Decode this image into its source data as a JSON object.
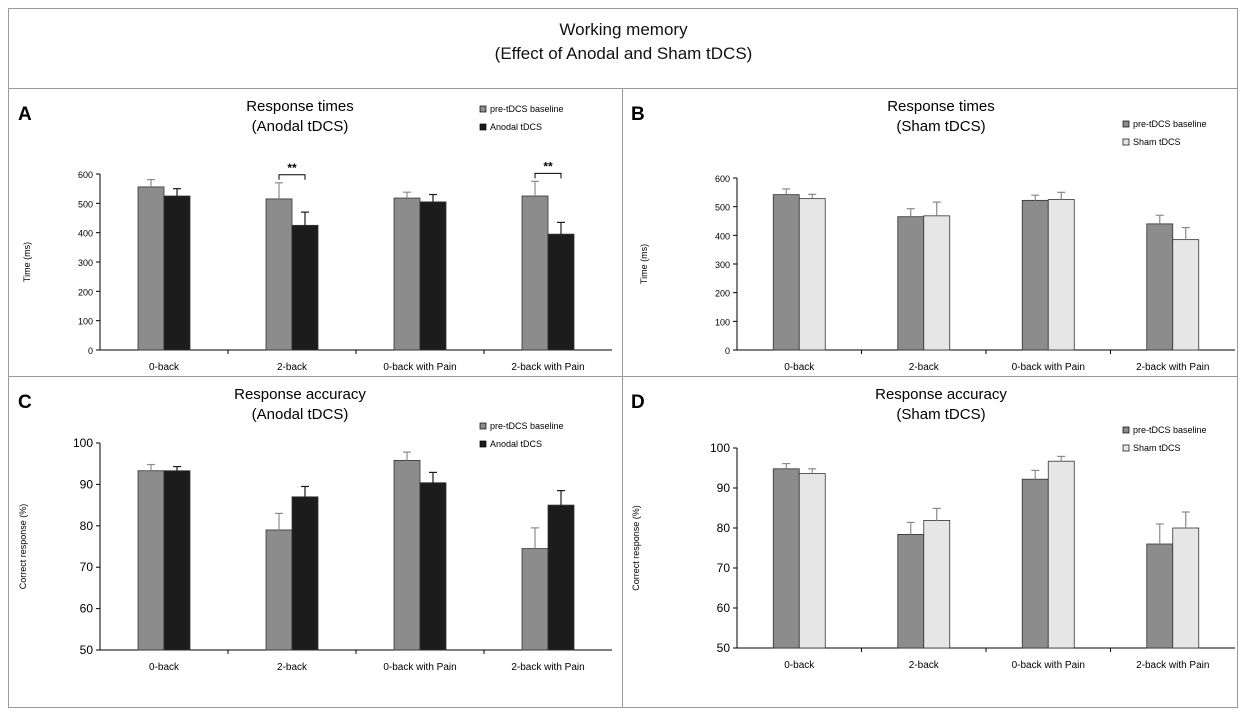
{
  "figure": {
    "title_line1": "Working memory",
    "title_line2": "(Effect of Anodal and Sham tDCS)"
  },
  "colors": {
    "baseline": "#8c8c8c",
    "anodal": "#1c1c1c",
    "sham": "#e6e6e6",
    "axis": "#000000"
  },
  "chart_data": [
    {
      "panel": "A",
      "type": "bar",
      "title": "Response times",
      "subtitle": "(Anodal tDCS)",
      "xlabel": "",
      "ylabel": "Time (ms)",
      "ylim": [
        0,
        600
      ],
      "yticks": [
        0,
        100,
        200,
        300,
        400,
        500,
        600
      ],
      "categories": [
        "0-back",
        "2-back",
        "0-back with Pain",
        "2-back with Pain"
      ],
      "series": [
        {
          "name": "pre-tDCS baseline",
          "color": "#8c8c8c",
          "values": [
            556,
            515,
            518,
            525
          ],
          "errors": [
            25,
            55,
            20,
            50
          ]
        },
        {
          "name": "Anodal tDCS",
          "color": "#1c1c1c",
          "values": [
            525,
            425,
            505,
            395
          ],
          "errors": [
            25,
            45,
            25,
            40
          ]
        }
      ],
      "significance": [
        {
          "category": "2-back",
          "label": "**"
        },
        {
          "category": "2-back with Pain",
          "label": "**"
        }
      ],
      "legend_position": "top-right",
      "grid": false
    },
    {
      "panel": "B",
      "type": "bar",
      "title": "Response times",
      "subtitle": "(Sham tDCS)",
      "xlabel": "",
      "ylabel": "Time (ms)",
      "ylim": [
        0,
        600
      ],
      "yticks": [
        0,
        100,
        200,
        300,
        400,
        500,
        600
      ],
      "categories": [
        "0-back",
        "2-back",
        "0-back with Pain",
        "2-back with Pain"
      ],
      "series": [
        {
          "name": "pre-tDCS baseline",
          "color": "#8c8c8c",
          "values": [
            542,
            465,
            522,
            440
          ],
          "errors": [
            20,
            28,
            18,
            30
          ]
        },
        {
          "name": "Sham tDCS",
          "color": "#e6e6e6",
          "values": [
            528,
            468,
            525,
            385
          ],
          "errors": [
            15,
            48,
            25,
            42
          ]
        }
      ],
      "significance": [],
      "legend_position": "top-right",
      "grid": false
    },
    {
      "panel": "C",
      "type": "bar",
      "title": "Response accuracy",
      "subtitle": "(Anodal tDCS)",
      "xlabel": "",
      "ylabel": "Correct response (%)",
      "ylim": [
        50,
        100
      ],
      "yticks": [
        50,
        60,
        70,
        80,
        90,
        100
      ],
      "categories": [
        "0-back",
        "2-back",
        "0-back with Pain",
        "2-back with Pain"
      ],
      "series": [
        {
          "name": "pre-tDCS baseline",
          "color": "#8c8c8c",
          "values": [
            93.3,
            79,
            95.8,
            74.5
          ],
          "errors": [
            1.5,
            4,
            2,
            5
          ]
        },
        {
          "name": "Anodal tDCS",
          "color": "#1c1c1c",
          "values": [
            93.3,
            87,
            90.4,
            85
          ],
          "errors": [
            1,
            2.5,
            2.5,
            3.5
          ]
        }
      ],
      "significance": [],
      "legend_position": "top-right",
      "grid": false
    },
    {
      "panel": "D",
      "type": "bar",
      "title": "Response accuracy",
      "subtitle": "(Sham tDCS)",
      "xlabel": "",
      "ylabel": "Correct response (%)",
      "ylim": [
        50,
        100
      ],
      "yticks": [
        50,
        60,
        70,
        80,
        90,
        100
      ],
      "categories": [
        "0-back",
        "2-back",
        "0-back with Pain",
        "2-back with Pain"
      ],
      "series": [
        {
          "name": "pre-tDCS baseline",
          "color": "#8c8c8c",
          "values": [
            94.8,
            78.4,
            92.2,
            76
          ],
          "errors": [
            1.3,
            3,
            2.2,
            5
          ]
        },
        {
          "name": "Sham tDCS",
          "color": "#e6e6e6",
          "values": [
            93.6,
            81.9,
            96.7,
            80
          ],
          "errors": [
            1.2,
            3,
            1.2,
            4
          ]
        }
      ],
      "significance": [],
      "legend_position": "top-right",
      "grid": false
    }
  ]
}
